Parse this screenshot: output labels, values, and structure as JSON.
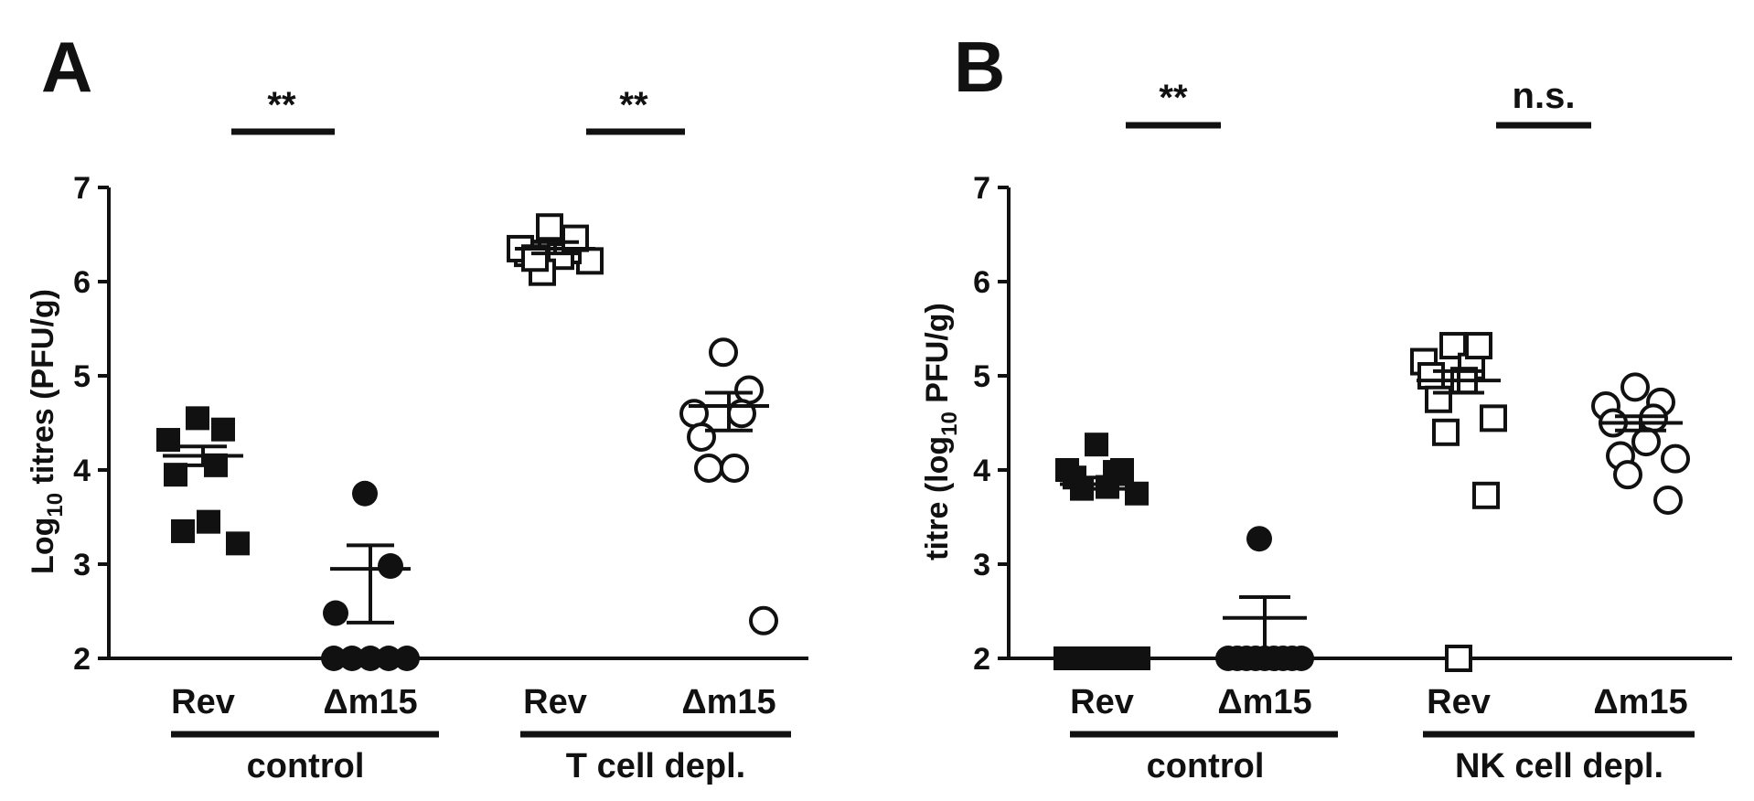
{
  "panels": [
    {
      "letter": "A",
      "ylabel_prefix": "Log",
      "ylabel_sub": "10",
      "ylabel_suffix": " titres (PFU/g)",
      "significance": [
        "**",
        "**"
      ],
      "categories": [
        "Rev",
        "Δm15",
        "Rev",
        "Δm15"
      ],
      "groups": [
        "control",
        "T cell depl."
      ],
      "yticks": [
        "2",
        "3",
        "4",
        "5",
        "6",
        "7"
      ]
    },
    {
      "letter": "B",
      "ylabel_prefix": "titre (log",
      "ylabel_sub": "10",
      "ylabel_suffix": " PFU/g)",
      "significance": [
        "**",
        "n.s."
      ],
      "categories": [
        "Rev",
        "Δm15",
        "Rev",
        "Δm15"
      ],
      "groups": [
        "control",
        "NK cell depl."
      ],
      "yticks": [
        "2",
        "3",
        "4",
        "5",
        "6",
        "7"
      ]
    }
  ],
  "chart_data": [
    {
      "type": "scatter",
      "title": "A",
      "ylabel": "Log10 titres (PFU/g)",
      "ylim": [
        2,
        7
      ],
      "y_ticks": [
        2,
        3,
        4,
        5,
        6,
        7
      ],
      "categories": [
        "Rev",
        "Δm15",
        "Rev",
        "Δm15"
      ],
      "groups": [
        {
          "name": "control",
          "categories": [
            "Rev",
            "Δm15"
          ]
        },
        {
          "name": "T cell depl.",
          "categories": [
            "Rev",
            "Δm15"
          ]
        }
      ],
      "series": [
        {
          "category": "Rev",
          "group": "control",
          "marker": "filled-square",
          "values": [
            4.55,
            4.32,
            4.43,
            3.95,
            3.45,
            3.35,
            3.22,
            4.05
          ],
          "mean": 4.15,
          "sem_low": 4.05,
          "sem_high": 4.25
        },
        {
          "category": "Δm15",
          "group": "control",
          "marker": "filled-circle",
          "values": [
            3.75,
            2.98,
            2.48,
            2.0,
            2.0,
            2.0,
            2.0,
            2.0
          ],
          "mean": 2.95,
          "sem_low": 2.38,
          "sem_high": 3.2
        },
        {
          "category": "Rev",
          "group": "T cell depl.",
          "marker": "open-square",
          "values": [
            6.22,
            6.33,
            6.27,
            6.3,
            6.35,
            6.46,
            6.58,
            6.1,
            6.25
          ],
          "mean": 6.35,
          "sem_low": 6.3,
          "sem_high": 6.42
        },
        {
          "category": "Δm15",
          "group": "T cell depl.",
          "marker": "open-circle",
          "values": [
            5.25,
            4.85,
            4.6,
            4.6,
            4.35,
            4.02,
            4.02,
            2.4
          ],
          "mean": 4.68,
          "sem_low": 4.42,
          "sem_high": 4.82
        }
      ],
      "annotations": [
        {
          "text": "**",
          "between": [
            "Rev",
            "Δm15"
          ],
          "group": "control"
        },
        {
          "text": "**",
          "between": [
            "Rev",
            "Δm15"
          ],
          "group": "T cell depl."
        }
      ]
    },
    {
      "type": "scatter",
      "title": "B",
      "ylabel": "titre (log10 PFU/g)",
      "ylim": [
        2,
        7
      ],
      "y_ticks": [
        2,
        3,
        4,
        5,
        6,
        7
      ],
      "categories": [
        "Rev",
        "Δm15",
        "Rev",
        "Δm15"
      ],
      "groups": [
        {
          "name": "control",
          "categories": [
            "Rev",
            "Δm15"
          ]
        },
        {
          "name": "NK cell depl.",
          "categories": [
            "Rev",
            "Δm15"
          ]
        }
      ],
      "series": [
        {
          "category": "Rev",
          "group": "control",
          "marker": "filled-square",
          "values": [
            4.27,
            4.0,
            3.92,
            3.82,
            3.98,
            4.0,
            3.75,
            3.8,
            2.0,
            2.0,
            2.0,
            2.0,
            2.0
          ],
          "mean": 3.85,
          "sem_low": 3.8,
          "sem_high": 3.92
        },
        {
          "category": "Δm15",
          "group": "control",
          "marker": "filled-circle",
          "values": [
            3.27,
            2.0,
            2.0,
            2.0,
            2.0,
            2.0,
            2.0,
            2.0,
            2.0,
            2.0
          ],
          "mean": 2.43,
          "sem_low": 2.0,
          "sem_high": 2.65
        },
        {
          "category": "Rev",
          "group": "NK cell depl.",
          "marker": "open-square",
          "values": [
            5.32,
            5.1,
            5.15,
            4.95,
            5.0,
            4.75,
            4.55,
            4.4,
            5.32,
            3.73,
            2.0
          ],
          "mean": 4.95,
          "sem_low": 4.82,
          "sem_high": 5.05
        },
        {
          "category": "Δm15",
          "group": "NK cell depl.",
          "marker": "open-circle",
          "values": [
            4.88,
            4.72,
            4.68,
            4.5,
            4.55,
            4.3,
            4.15,
            4.12,
            3.95,
            3.68
          ],
          "mean": 4.5,
          "sem_low": 4.42,
          "sem_high": 4.57
        }
      ],
      "annotations": [
        {
          "text": "**",
          "between": [
            "Rev",
            "Δm15"
          ],
          "group": "control"
        },
        {
          "text": "n.s.",
          "between": [
            "Rev",
            "Δm15"
          ],
          "group": "NK cell depl."
        }
      ]
    }
  ]
}
